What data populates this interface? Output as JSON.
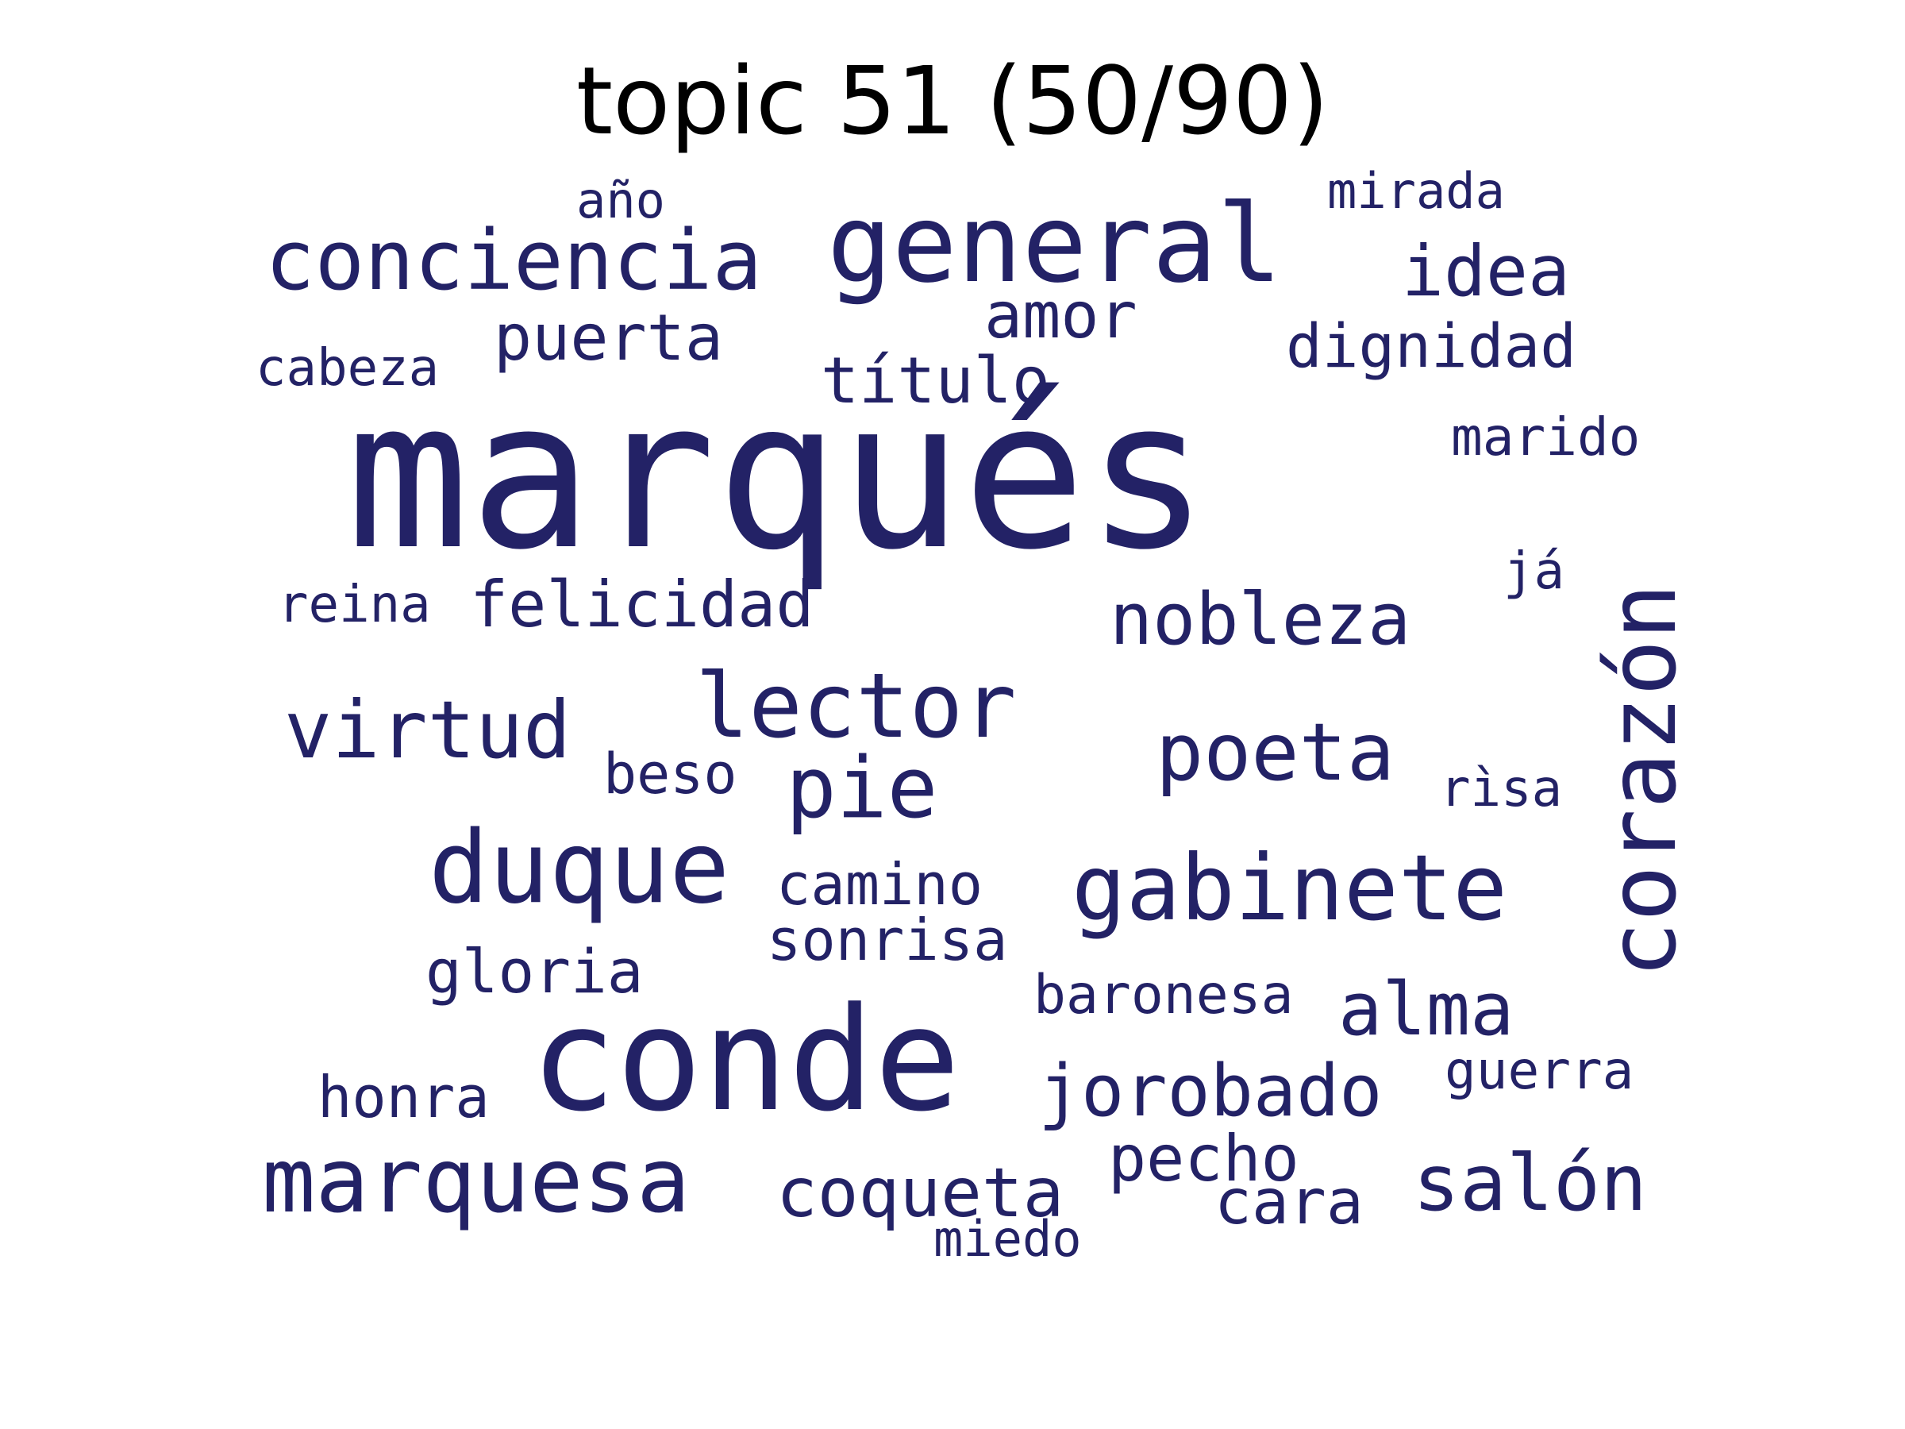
{
  "title": "topic 51 (50/90)",
  "word_color": "#232266",
  "words": [
    {
      "text": "marqués"
    },
    {
      "text": "conde"
    },
    {
      "text": "general"
    },
    {
      "text": "corazón"
    },
    {
      "text": "duque"
    },
    {
      "text": "marquesa"
    },
    {
      "text": "gabinete"
    },
    {
      "text": "conciencia"
    },
    {
      "text": "lector"
    },
    {
      "text": "virtud"
    },
    {
      "text": "poeta"
    },
    {
      "text": "pie"
    },
    {
      "text": "idea"
    },
    {
      "text": "nobleza"
    },
    {
      "text": "salón"
    },
    {
      "text": "alma"
    },
    {
      "text": "jorobado"
    },
    {
      "text": "coqueta"
    },
    {
      "text": "puerta"
    },
    {
      "text": "amor"
    },
    {
      "text": "título"
    },
    {
      "text": "felicidad"
    },
    {
      "text": "dignidad"
    },
    {
      "text": "pecho"
    },
    {
      "text": "cara"
    },
    {
      "text": "gloria"
    },
    {
      "text": "camino"
    },
    {
      "text": "sonrisa"
    },
    {
      "text": "honra"
    },
    {
      "text": "beso"
    },
    {
      "text": "baronesa"
    },
    {
      "text": "marido"
    },
    {
      "text": "guerra"
    },
    {
      "text": "mirada"
    },
    {
      "text": "rìsa"
    },
    {
      "text": "cabeza"
    },
    {
      "text": "reina"
    },
    {
      "text": "año"
    },
    {
      "text": "já"
    },
    {
      "text": "miedo"
    }
  ]
}
